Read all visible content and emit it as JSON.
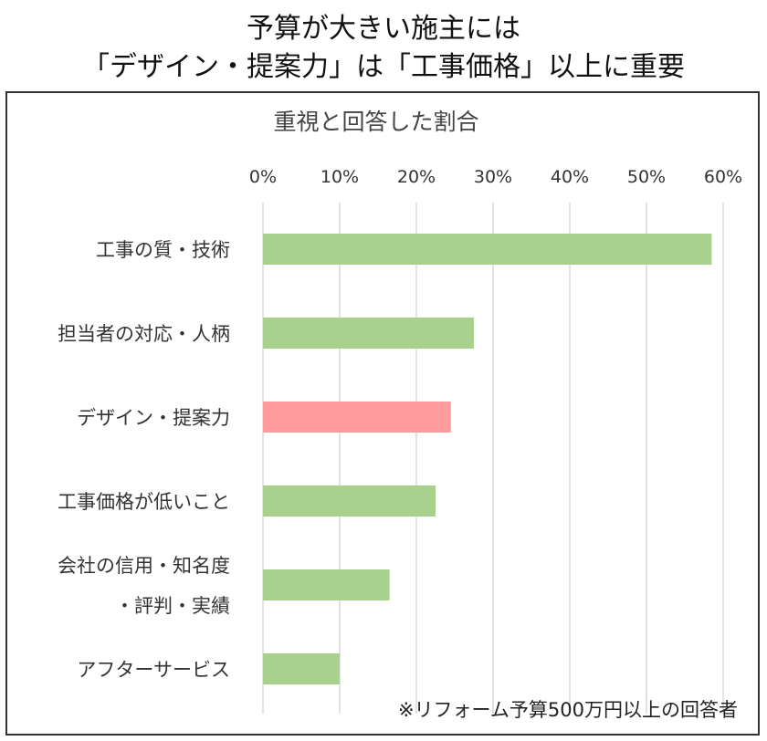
{
  "header": {
    "title_line_1": "予算が大きい施主には",
    "title_line_2": "「デザイン・提案力」は「工事価格」以上に重要"
  },
  "chart_data": {
    "type": "bar",
    "orientation": "horizontal",
    "title": "重視と回答した割合",
    "xlim": [
      0,
      60
    ],
    "x_ticks": [
      "0%",
      "10%",
      "20%",
      "30%",
      "40%",
      "50%",
      "60%"
    ],
    "axis_position": "top",
    "grid": true,
    "categories": [
      [
        "工事の質・技術"
      ],
      [
        "担当者の対応・人柄"
      ],
      [
        "デザイン・提案力"
      ],
      [
        "工事価格が低いこと"
      ],
      [
        "会社の信用・知名度",
        "・評判・実績"
      ],
      [
        "アフターサービス"
      ]
    ],
    "values": [
      58.5,
      27.5,
      24.5,
      22.5,
      16.5,
      10
    ],
    "colors": [
      "#a9d18e",
      "#a9d18e",
      "#ff9b9b",
      "#a9d18e",
      "#a9d18e",
      "#a9d18e"
    ],
    "note": "※リフォーム予算500万円以上の回答者"
  }
}
